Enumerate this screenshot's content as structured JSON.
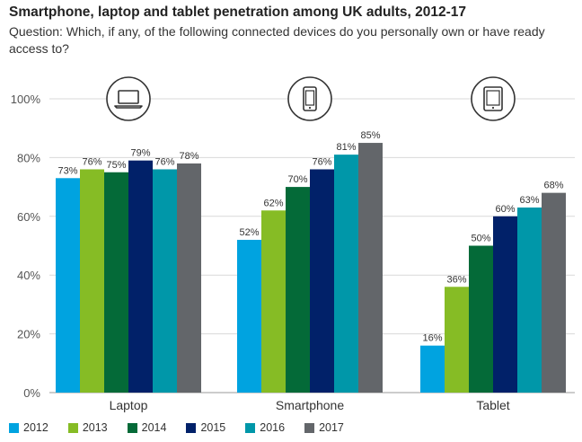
{
  "title": "Smartphone, laptop and tablet penetration among UK adults, 2012-17",
  "subtitle": "Question: Which, if any, of the following connected devices do you personally own or have ready access to?",
  "colors": {
    "2012": "#00A3E0",
    "2013": "#86BC25",
    "2014": "#046A38",
    "2015": "#012169",
    "2016": "#0097A9",
    "2017": "#63666A"
  },
  "icons": [
    "laptop-icon",
    "smartphone-icon",
    "tablet-icon"
  ],
  "chart_data": {
    "type": "bar",
    "title": "Smartphone, laptop and tablet penetration among UK adults, 2012-17",
    "categories": [
      "Laptop",
      "Smartphone",
      "Tablet"
    ],
    "series": [
      {
        "name": "2012",
        "values": [
          73,
          52,
          16
        ]
      },
      {
        "name": "2013",
        "values": [
          76,
          62,
          36
        ]
      },
      {
        "name": "2014",
        "values": [
          75,
          70,
          50
        ]
      },
      {
        "name": "2015",
        "values": [
          79,
          76,
          60
        ]
      },
      {
        "name": "2016",
        "values": [
          76,
          81,
          63
        ]
      },
      {
        "name": "2017",
        "values": [
          78,
          85,
          68
        ]
      }
    ],
    "ylim": [
      0,
      100
    ],
    "yticks": [
      0,
      20,
      40,
      60,
      80,
      100
    ],
    "ytick_labels": [
      "0%",
      "20%",
      "40%",
      "60%",
      "80%",
      "100%"
    ],
    "value_suffix": "%",
    "xlabel": "",
    "ylabel": "",
    "legend": "bottom",
    "grid": true
  }
}
